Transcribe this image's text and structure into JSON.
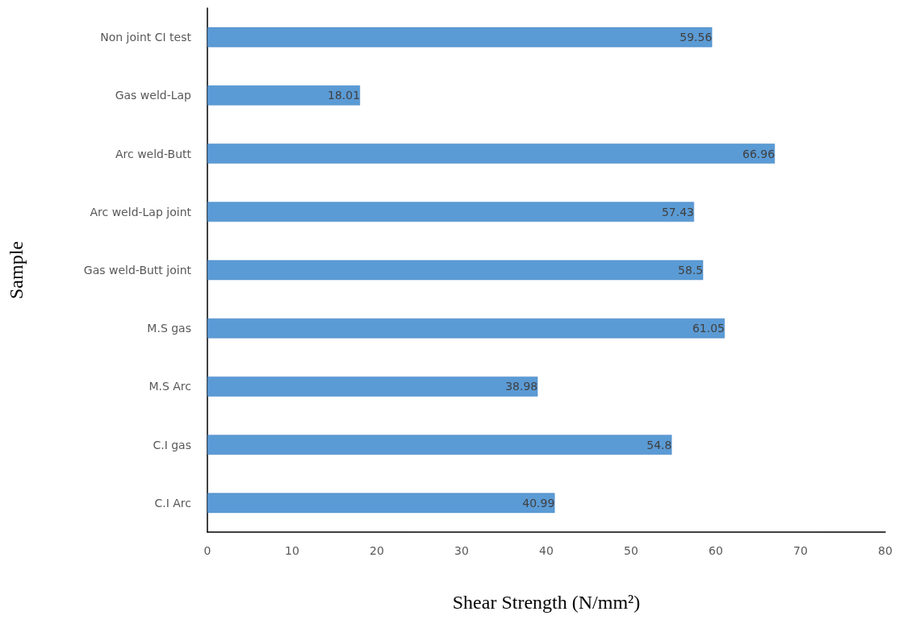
{
  "chart_data": {
    "type": "bar",
    "orientation": "horizontal",
    "xlabel": "Shear Strength (N/mm²)",
    "ylabel": "Sample",
    "categories": [
      "Non joint CI test",
      "Gas weld-Lap",
      "Arc weld-Butt",
      "Arc weld-Lap joint",
      "Gas weld-Butt joint",
      "M.S gas",
      "M.S Arc",
      "C.I gas",
      "C.I Arc"
    ],
    "values": [
      59.56,
      18.01,
      66.96,
      57.43,
      58.5,
      61.05,
      38.98,
      54.8,
      40.99
    ],
    "color": "#5b9bd5",
    "xlim": [
      0,
      80
    ],
    "xticks": [
      0,
      10,
      20,
      30,
      40,
      50,
      60,
      70,
      80
    ],
    "grid": false,
    "data_labels": true
  }
}
